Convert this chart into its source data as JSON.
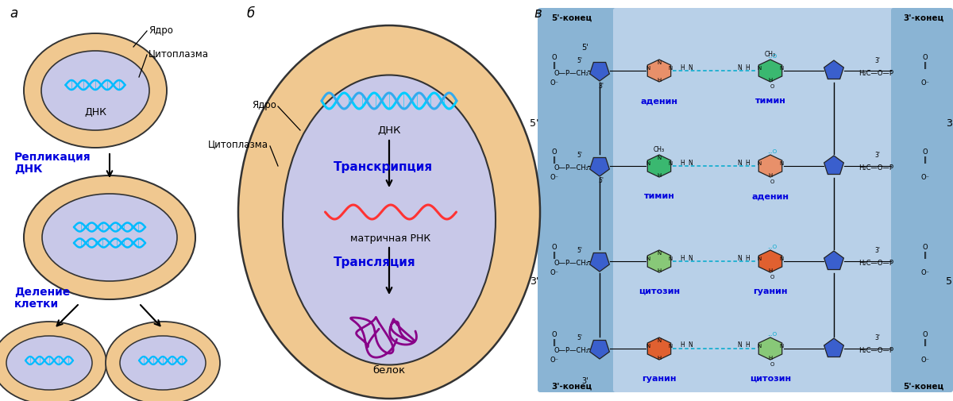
{
  "bg_color": "#ffffff",
  "cytoplasm_color": "#f0c890",
  "nucleus_color": "#c8c8e8",
  "text_blue": "#0000dd",
  "text_black": "#111111",
  "label_a": "а",
  "label_b": "б",
  "label_v": "в",
  "nucleus_label": "Ядро",
  "cytoplasm_label": "Цитоплазма",
  "dna_label": "ДНК",
  "replication_label": "Репликация\nДНК",
  "division_label": "Деление\nклетки",
  "transcription_label": "Транскрипция",
  "mrna_label": "матричная РНК",
  "translation_label": "Трансляция",
  "protein_label": "белок",
  "adenine_label": "аденин",
  "thymine_label": "тимин",
  "cytosine_label": "цитозин",
  "guanine_label": "гуанин",
  "sugar_color": "#3a5fcd",
  "adenine_color": "#e8906a",
  "thymine_color": "#3ab870",
  "cytosine_color": "#88c878",
  "guanine_color": "#e06030",
  "dna_bg_left": "#90b8d8",
  "dna_bg_right": "#90b8d8",
  "dna_bg_mid": "#b8d0e8",
  "hbond_color": "#00aacc",
  "backbone_color": "#222222"
}
